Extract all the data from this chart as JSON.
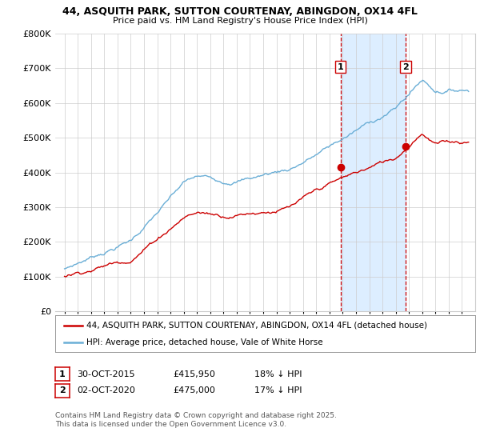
{
  "title1": "44, ASQUITH PARK, SUTTON COURTENAY, ABINGDON, OX14 4FL",
  "title2": "Price paid vs. HM Land Registry's House Price Index (HPI)",
  "ylim": [
    0,
    800000
  ],
  "yticks": [
    0,
    100000,
    200000,
    300000,
    400000,
    500000,
    600000,
    700000,
    800000
  ],
  "hpi_color": "#6aaed6",
  "price_color": "#cc0000",
  "vline_color": "#cc0000",
  "shade_color": "#ddeeff",
  "sale1_year": 2015.83,
  "sale1_price": 415950,
  "sale2_year": 2020.75,
  "sale2_price": 475000,
  "legend_entry1": "44, ASQUITH PARK, SUTTON COURTENAY, ABINGDON, OX14 4FL (detached house)",
  "legend_entry2": "HPI: Average price, detached house, Vale of White Horse",
  "footnote3": "Contains HM Land Registry data © Crown copyright and database right 2025.",
  "footnote4": "This data is licensed under the Open Government Licence v3.0.",
  "bg_color": "#ffffff",
  "grid_color": "#cccccc"
}
